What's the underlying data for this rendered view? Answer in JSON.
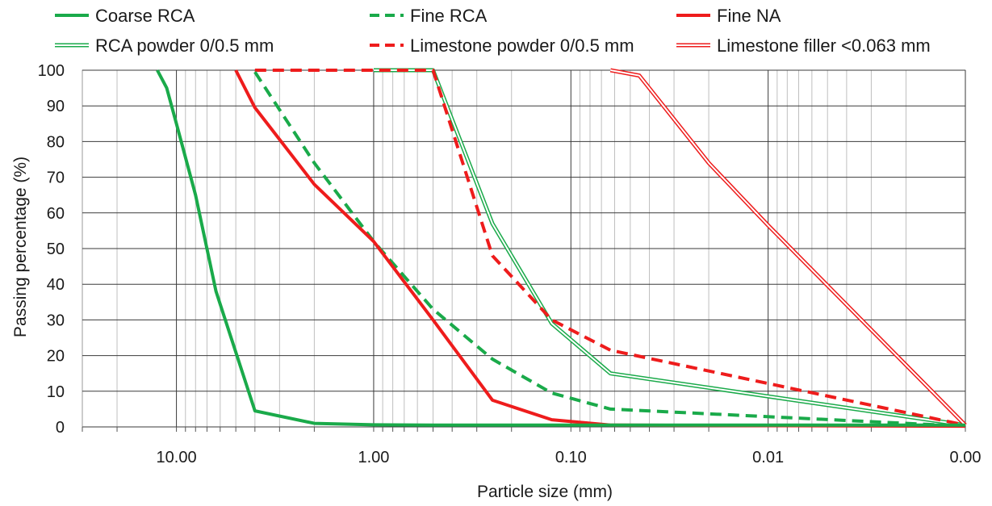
{
  "chart_data": {
    "type": "line",
    "x_scale": "log",
    "x_reversed": true,
    "xlabel": "Particle size (mm)",
    "ylabel": "Passing percentage (%)",
    "xlim": [
      0.001,
      30
    ],
    "ylim": [
      0,
      100
    ],
    "x_ticks": [
      {
        "value": 10,
        "label": "10.00"
      },
      {
        "value": 1,
        "label": "1.00"
      },
      {
        "value": 0.1,
        "label": "0.10"
      },
      {
        "value": 0.01,
        "label": "0.01"
      },
      {
        "value": 0.001,
        "label": "0.00"
      }
    ],
    "y_ticks": [
      0,
      10,
      20,
      30,
      40,
      50,
      60,
      70,
      80,
      90,
      100
    ],
    "grid": true,
    "legend_position": "top",
    "series": [
      {
        "name": "Coarse RCA",
        "color": "#1aaa4a",
        "style": "solid",
        "points": [
          [
            12.5,
            100
          ],
          [
            11.2,
            95
          ],
          [
            10,
            85
          ],
          [
            8,
            65
          ],
          [
            6.3,
            38
          ],
          [
            4,
            4.5
          ],
          [
            2,
            1
          ],
          [
            1,
            0.6
          ],
          [
            0.5,
            0.5
          ],
          [
            0.25,
            0.5
          ],
          [
            0.125,
            0.5
          ],
          [
            0.063,
            0.5
          ],
          [
            0.001,
            0.5
          ]
        ]
      },
      {
        "name": "Fine RCA",
        "color": "#1aaa4a",
        "style": "dashed",
        "points": [
          [
            4,
            99.5
          ],
          [
            2,
            74
          ],
          [
            1,
            52
          ],
          [
            0.5,
            33
          ],
          [
            0.25,
            19
          ],
          [
            0.125,
            9.5
          ],
          [
            0.063,
            5
          ],
          [
            0.001,
            0.2
          ]
        ]
      },
      {
        "name": "Fine NA",
        "color": "#ee1c1c",
        "style": "solid",
        "points": [
          [
            5,
            100
          ],
          [
            4,
            89.5
          ],
          [
            2,
            68
          ],
          [
            1,
            52
          ],
          [
            0.5,
            30
          ],
          [
            0.25,
            7.5
          ],
          [
            0.125,
            2
          ],
          [
            0.063,
            0.5
          ],
          [
            0.001,
            0.2
          ]
        ]
      },
      {
        "name": "RCA powder 0/0.5 mm",
        "color": "#1aaa4a",
        "style": "double",
        "points": [
          [
            1,
            100
          ],
          [
            0.5,
            100
          ],
          [
            0.25,
            57
          ],
          [
            0.125,
            29
          ],
          [
            0.063,
            15
          ],
          [
            0.001,
            0.5
          ]
        ]
      },
      {
        "name": "Limestone powder 0/0.5 mm",
        "color": "#ee1c1c",
        "style": "dashed",
        "points": [
          [
            4,
            100
          ],
          [
            1,
            100
          ],
          [
            0.5,
            100
          ],
          [
            0.25,
            48
          ],
          [
            0.125,
            30
          ],
          [
            0.063,
            21.5
          ],
          [
            0.001,
            0.5
          ]
        ]
      },
      {
        "name": "Limestone filler <0.063 mm",
        "color": "#ee1c1c",
        "style": "double",
        "points": [
          [
            0.063,
            100
          ],
          [
            0.045,
            98.5
          ],
          [
            0.02,
            74
          ],
          [
            0.01,
            56.5
          ],
          [
            0.001,
            0.5
          ]
        ]
      }
    ]
  }
}
